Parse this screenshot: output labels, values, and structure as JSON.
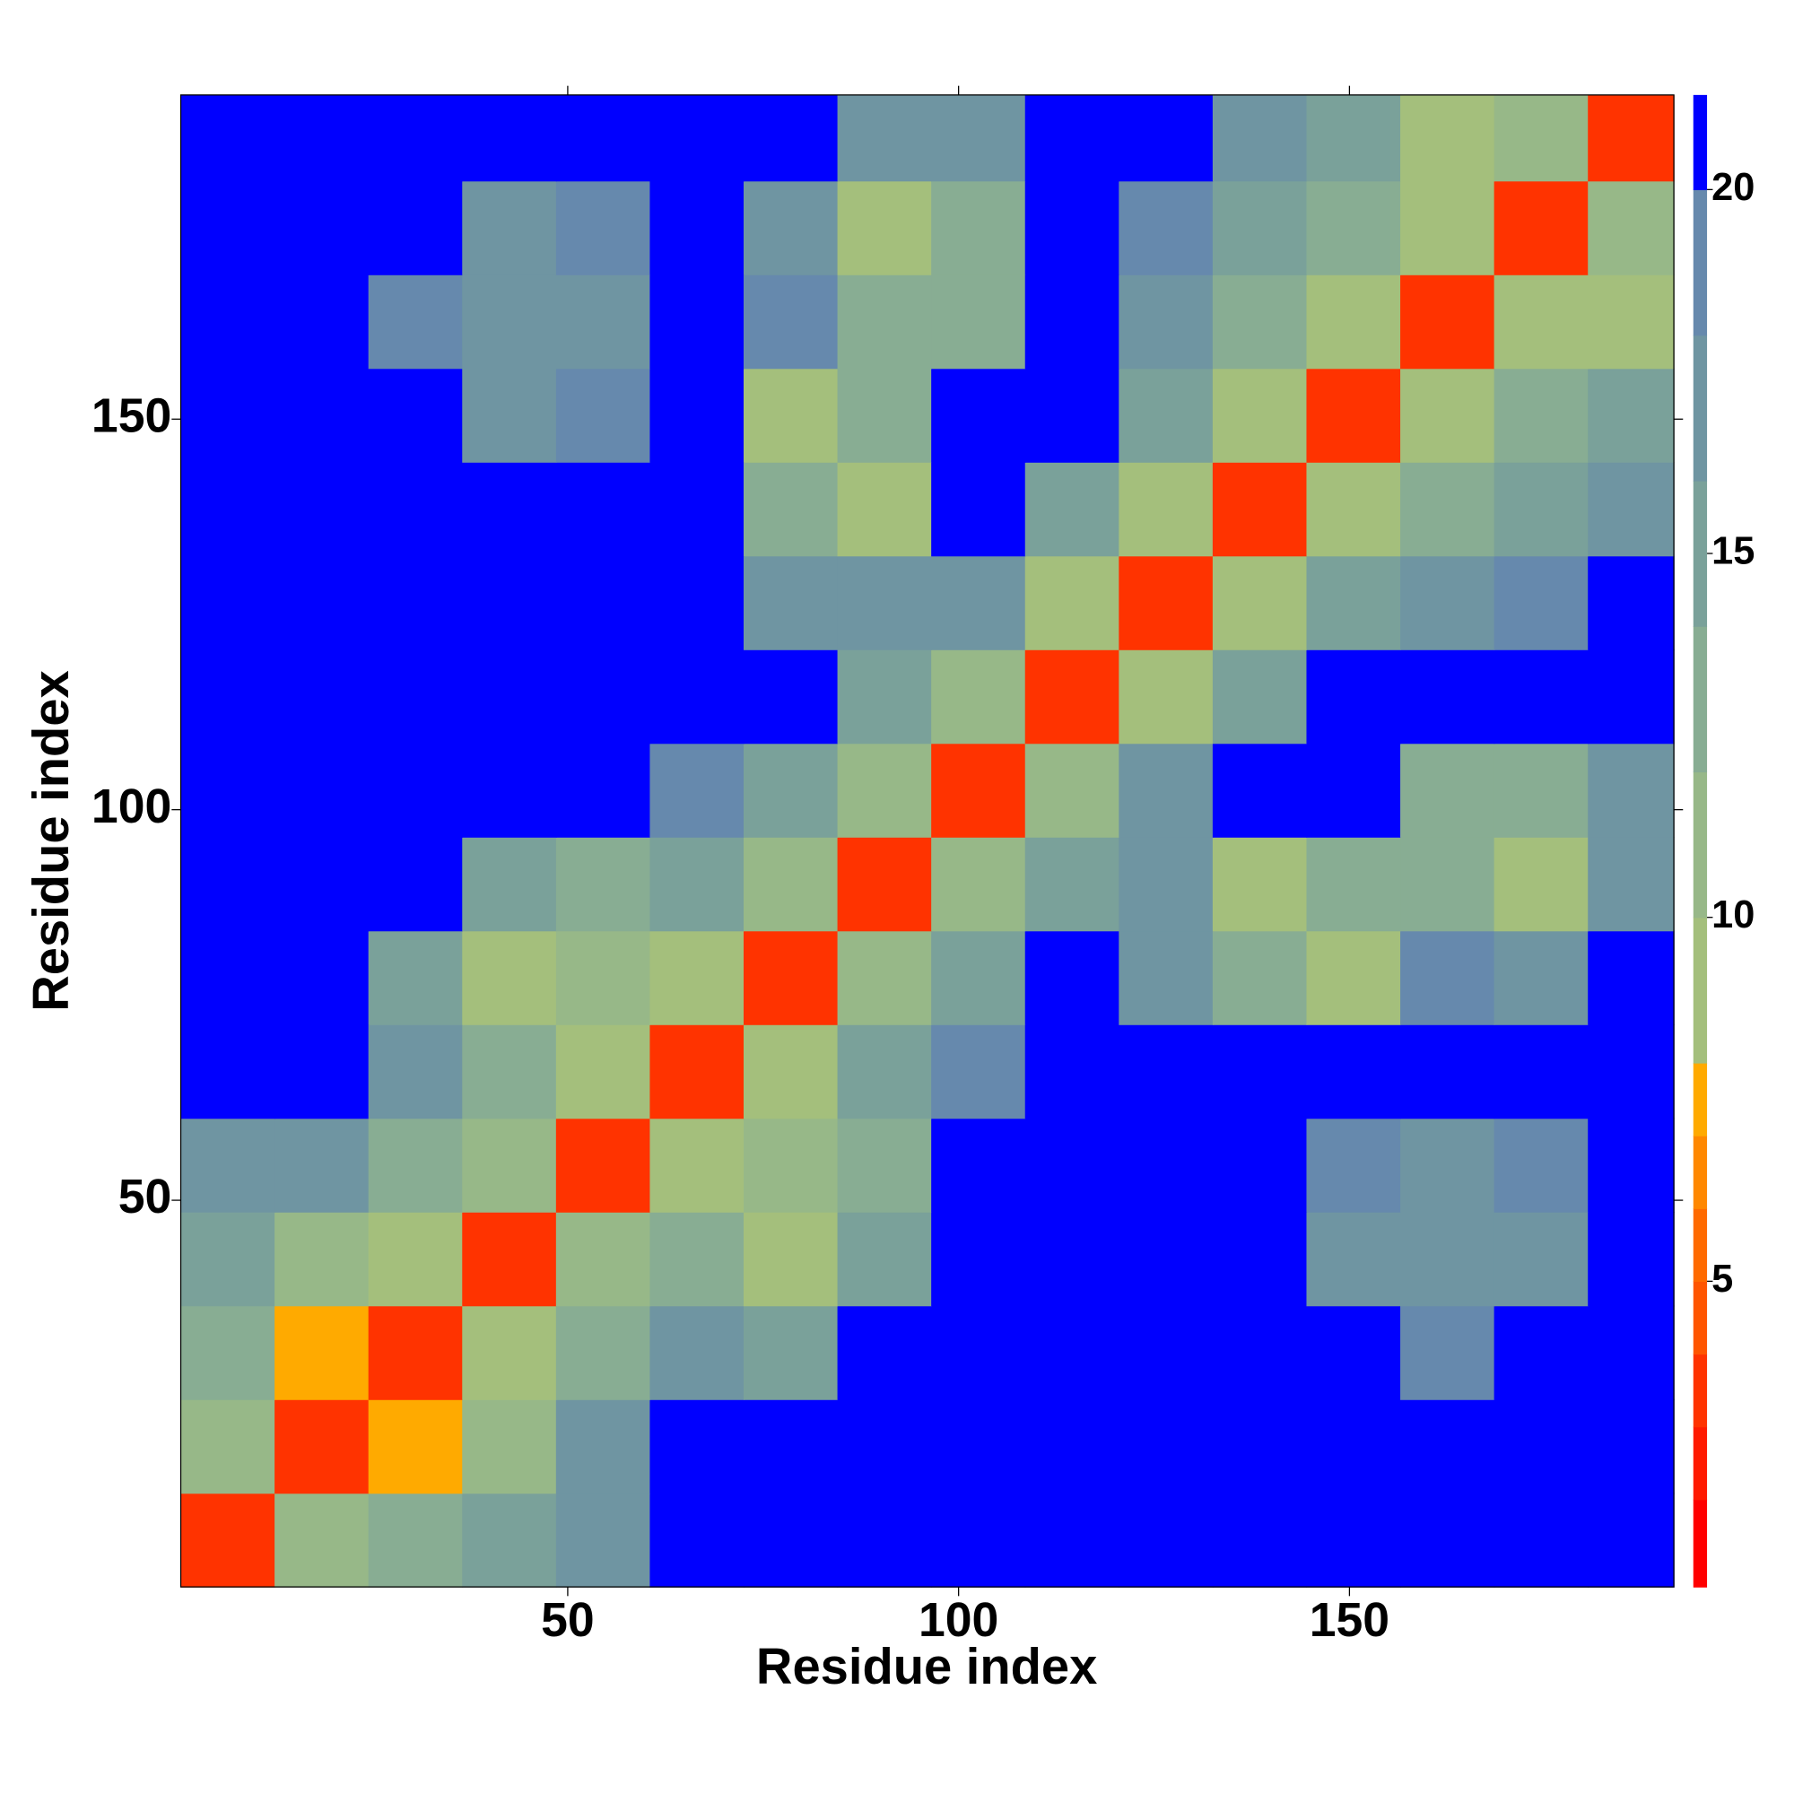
{
  "chart_data": {
    "type": "heatmap",
    "xlabel": "Residue index",
    "ylabel": "Residue index",
    "xlim": [
      0.5,
      191.5
    ],
    "ylim": [
      0.5,
      191.5
    ],
    "xticks": [
      50,
      100,
      150
    ],
    "yticks": [
      50,
      100,
      150
    ],
    "xbins": [
      0.5,
      12.5,
      24.5,
      36.5,
      48.5,
      60.5,
      72.5,
      84.5,
      96.5,
      108.5,
      120.5,
      132.5,
      144.5,
      156.5,
      168.5,
      180.5,
      191.5
    ],
    "ybins": [
      0.5,
      12.5,
      24.5,
      36.5,
      48.5,
      60.5,
      72.5,
      84.5,
      96.5,
      108.5,
      120.5,
      132.5,
      144.5,
      156.5,
      168.5,
      180.5,
      191.5
    ],
    "values": [
      [
        3,
        10,
        12,
        15,
        17,
        21,
        21,
        21,
        21,
        21,
        21,
        21,
        21,
        21,
        21,
        21
      ],
      [
        10,
        3,
        7,
        11,
        16,
        21,
        21,
        21,
        21,
        21,
        21,
        21,
        21,
        21,
        21,
        21
      ],
      [
        12,
        7,
        3,
        8,
        12,
        16,
        15,
        21,
        21,
        21,
        21,
        21,
        21,
        18,
        21,
        21
      ],
      [
        15,
        11,
        8,
        3,
        10,
        13,
        8,
        14,
        21,
        21,
        21,
        21,
        17,
        16,
        17,
        21
      ],
      [
        17,
        16,
        12,
        10,
        3,
        9,
        11,
        13,
        21,
        21,
        21,
        21,
        18,
        16,
        18,
        21
      ],
      [
        21,
        21,
        16,
        13,
        9,
        3,
        8,
        14,
        18,
        21,
        21,
        21,
        21,
        21,
        21,
        21
      ],
      [
        21,
        21,
        15,
        8,
        11,
        8,
        3,
        10,
        15,
        21,
        17,
        13,
        8,
        18,
        17,
        21
      ],
      [
        21,
        21,
        21,
        14,
        13,
        14,
        10,
        3,
        10,
        15,
        16,
        9,
        12,
        13,
        8,
        17
      ],
      [
        21,
        21,
        21,
        21,
        21,
        18,
        15,
        10,
        3,
        10,
        16,
        21,
        21,
        12,
        13,
        17
      ],
      [
        21,
        21,
        21,
        21,
        21,
        21,
        21,
        15,
        10,
        3,
        9,
        15,
        21,
        21,
        21,
        21
      ],
      [
        21,
        21,
        21,
        21,
        21,
        21,
        17,
        16,
        16,
        9,
        3,
        9,
        14,
        17,
        18,
        21
      ],
      [
        21,
        21,
        21,
        21,
        21,
        21,
        13,
        9,
        21,
        15,
        9,
        3,
        9,
        13,
        15,
        17
      ],
      [
        21,
        21,
        21,
        17,
        18,
        21,
        8,
        12,
        21,
        21,
        14,
        9,
        3,
        8,
        12,
        15
      ],
      [
        21,
        21,
        18,
        16,
        16,
        21,
        18,
        13,
        12,
        21,
        17,
        13,
        8,
        3,
        9,
        8
      ],
      [
        21,
        21,
        21,
        17,
        18,
        21,
        17,
        8,
        13,
        21,
        18,
        15,
        12,
        9,
        3,
        10
      ],
      [
        21,
        21,
        21,
        21,
        21,
        21,
        21,
        17,
        17,
        21,
        21,
        17,
        15,
        8,
        10,
        3
      ]
    ],
    "colorbar": {
      "lim": [
        0.8,
        21.3
      ],
      "ticks": [
        5,
        10,
        15,
        20
      ],
      "levels": [
        0.8,
        2,
        3,
        4,
        5,
        6,
        7,
        8,
        10,
        12,
        14,
        16,
        18,
        20,
        21.3
      ],
      "colors": [
        "#ff0000",
        "#ff1a00",
        "#ff3300",
        "#ff5500",
        "#ff6a00",
        "#ff8800",
        "#ffaa00",
        "#a4bf7c",
        "#97b888",
        "#88ad93",
        "#7aa19a",
        "#6f95a2",
        "#6689ad",
        "#0000ff"
      ]
    }
  }
}
